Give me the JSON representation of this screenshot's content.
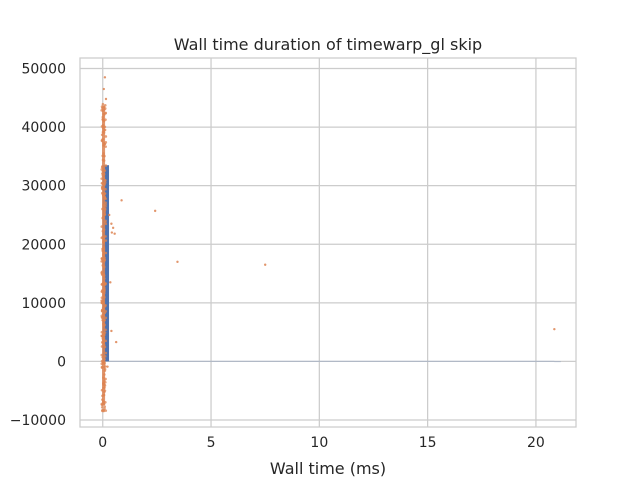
{
  "chart_data": {
    "type": "scatter",
    "title": "Wall time duration of timewarp_gl skip",
    "xlabel": "Wall time (ms)",
    "ylabel": "",
    "xlim": [
      -1.05,
      21.85
    ],
    "ylim": [
      -11200,
      51800
    ],
    "xticks": [
      0,
      5,
      10,
      15,
      20
    ],
    "yticks": [
      -10000,
      0,
      10000,
      20000,
      30000,
      40000,
      50000
    ],
    "xtick_labels": [
      "0",
      "5",
      "10",
      "15",
      "20"
    ],
    "ytick_labels": [
      "−10000",
      "0",
      "10000",
      "20000",
      "30000",
      "40000",
      "50000"
    ],
    "grid": true,
    "colors": {
      "bars": "#4c72b0",
      "points": "#dd8452",
      "grid": "#cccccc",
      "spine": "#cccccc"
    },
    "histogram": {
      "bins": [
        {
          "x0": 0.0,
          "x1": 0.29,
          "count": 33500
        },
        {
          "x0": 0.29,
          "x1": 20.85,
          "count": 100
        },
        {
          "x0": 20.85,
          "x1": 21.15,
          "count": 8
        }
      ]
    },
    "points": [
      {
        "x": 0.87,
        "y": 27500
      },
      {
        "x": 2.42,
        "y": 25700
      },
      {
        "x": 3.45,
        "y": 17000
      },
      {
        "x": 7.5,
        "y": 16500
      },
      {
        "x": 20.85,
        "y": 5500
      },
      {
        "x": 0.4,
        "y": 23500
      },
      {
        "x": 0.48,
        "y": 22800
      },
      {
        "x": 0.55,
        "y": 21800
      },
      {
        "x": 0.42,
        "y": 22000
      },
      {
        "x": 0.35,
        "y": 13500
      },
      {
        "x": 0.4,
        "y": 5200
      },
      {
        "x": 0.62,
        "y": 3300
      },
      {
        "x": 0.1,
        "y": 48500
      },
      {
        "x": 0.05,
        "y": 46500
      },
      {
        "x": 0.15,
        "y": 44800
      },
      {
        "x": 0.08,
        "y": 43000
      },
      {
        "x": 0.12,
        "y": 26000
      },
      {
        "x": 0.3,
        "y": 25000
      },
      {
        "x": 0.05,
        "y": -8500
      },
      {
        "x": 0.22,
        "y": -900
      }
    ],
    "jitter_band": {
      "x": [
        -0.05,
        0.15
      ],
      "y": [
        -8500,
        44000
      ],
      "count": 260
    }
  }
}
